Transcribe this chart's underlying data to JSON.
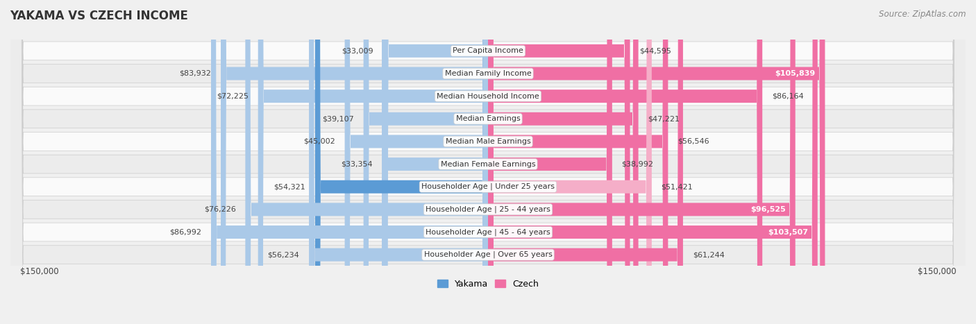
{
  "title": "YAKAMA VS CZECH INCOME",
  "source": "Source: ZipAtlas.com",
  "categories": [
    "Per Capita Income",
    "Median Family Income",
    "Median Household Income",
    "Median Earnings",
    "Median Male Earnings",
    "Median Female Earnings",
    "Householder Age | Under 25 years",
    "Householder Age | 25 - 44 years",
    "Householder Age | 45 - 64 years",
    "Householder Age | Over 65 years"
  ],
  "yakama_values": [
    33009,
    83932,
    72225,
    39107,
    45002,
    33354,
    54321,
    76226,
    86992,
    56234
  ],
  "czech_values": [
    44595,
    105839,
    86164,
    47221,
    56546,
    38992,
    51421,
    96525,
    103507,
    61244
  ],
  "yakama_labels": [
    "$33,009",
    "$83,932",
    "$72,225",
    "$39,107",
    "$45,002",
    "$33,354",
    "$54,321",
    "$76,226",
    "$86,992",
    "$56,234"
  ],
  "czech_labels": [
    "$44,595",
    "$105,839",
    "$86,164",
    "$47,221",
    "$56,546",
    "$38,992",
    "$51,421",
    "$96,525",
    "$103,507",
    "$61,244"
  ],
  "yakama_color_dark": "#5b9bd5",
  "yakama_color_light": "#aac9e8",
  "czech_color_dark": "#f06fa4",
  "czech_color_light": "#f5aec8",
  "max_val": 150000,
  "xlabel_left": "$150,000",
  "xlabel_right": "$150,000",
  "bar_height": 0.58,
  "background_color": "#f0f0f0",
  "row_colors": [
    "#fafafa",
    "#ececec"
  ],
  "title_fontsize": 12,
  "source_fontsize": 8.5,
  "label_fontsize": 8,
  "cat_fontsize": 8
}
